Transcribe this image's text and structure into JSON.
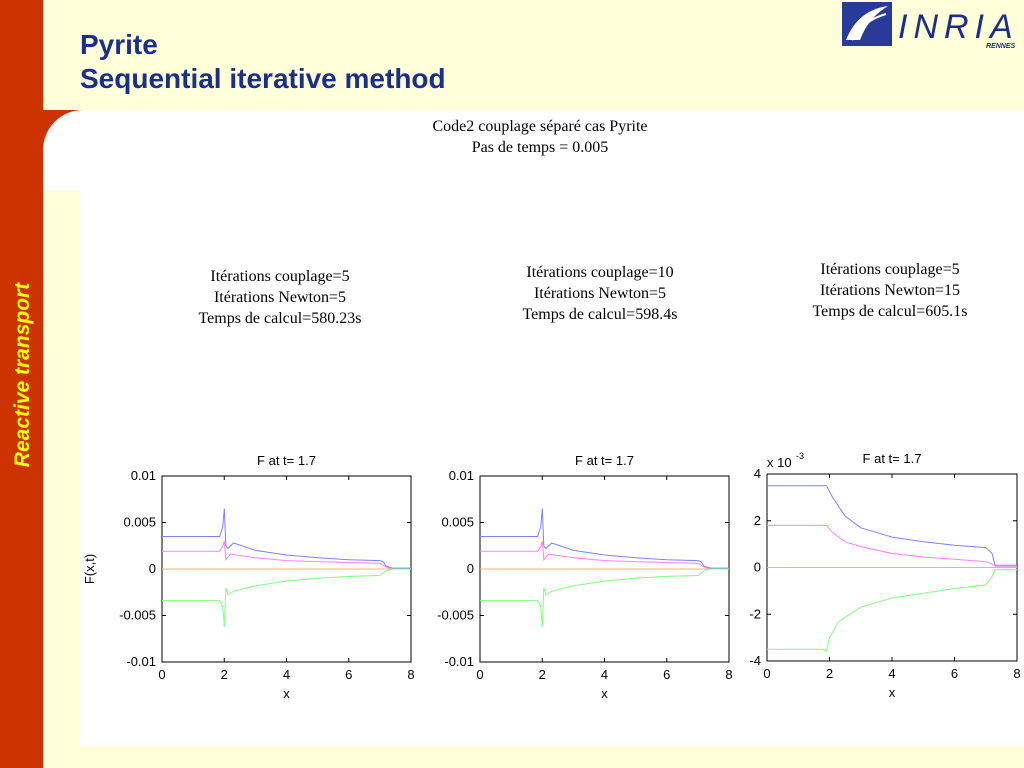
{
  "slide": {
    "title_line1": "Pyrite",
    "title_line2": "Sequential iterative method",
    "section_label": "Reactive transport",
    "logo_text": "INRIA",
    "logo_subtext": "RENNES"
  },
  "figure": {
    "title_line1": "Code2 couplage séparé cas Pyrite",
    "title_line2": "Pas de temps = 0.005"
  },
  "runs": [
    {
      "line1": "Itérations couplage=5",
      "line2": "Itérations Newton=5",
      "line3": "Temps de calcul=580.23s"
    },
    {
      "line1": "Itérations couplage=10",
      "line2": "Itérations Newton=5",
      "line3": "Temps de calcul=598.4s"
    },
    {
      "line1": "Itérations couplage=5",
      "line2": "Itérations Newton=15",
      "line3": "Temps de calcul=605.1s"
    }
  ],
  "colors": {
    "series_blue": "#8080ff",
    "series_magenta": "#ff80ff",
    "series_green": "#80ff80",
    "series_orange": "#ffb070"
  },
  "chart_data": [
    {
      "type": "line",
      "title": "F at t= 1.7",
      "xlabel": "x",
      "ylabel": "F(x,t)",
      "xlim": [
        0,
        8
      ],
      "ylim": [
        -0.01,
        0.01
      ],
      "xticks": [
        "0",
        "2",
        "4",
        "6",
        "8"
      ],
      "yticks": [
        "-0.01",
        "-0.005",
        "0",
        "0.005",
        "0.01"
      ],
      "series": [
        {
          "color": "#8080ff",
          "x": [
            0,
            1.85,
            1.95,
            2.0,
            2.05,
            2.12,
            2.3,
            3,
            4,
            5,
            6,
            7,
            7.1,
            7.2,
            7.4,
            8
          ],
          "y": [
            0.0035,
            0.0035,
            0.0045,
            0.0065,
            0.0025,
            0.0022,
            0.0028,
            0.002,
            0.0015,
            0.0012,
            0.001,
            0.0009,
            0.0008,
            0.0003,
            0.0001,
            0.0001
          ]
        },
        {
          "color": "#ff80ff",
          "x": [
            0,
            1.85,
            1.95,
            2.0,
            2.05,
            2.2,
            3,
            4,
            5,
            6,
            7,
            7.2,
            7.4,
            8
          ],
          "y": [
            0.0019,
            0.0019,
            0.0024,
            0.003,
            0.001,
            0.0016,
            0.0012,
            0.0009,
            0.0008,
            0.0007,
            0.0006,
            0.0002,
            0.0,
            0.0
          ]
        },
        {
          "color": "#ffb070",
          "x": [
            0,
            8
          ],
          "y": [
            0.0,
            0.0
          ]
        },
        {
          "color": "#80ff80",
          "x": [
            0,
            1.85,
            1.95,
            2.0,
            2.05,
            2.12,
            2.3,
            3,
            4,
            5,
            6,
            7,
            7.2,
            7.4,
            8
          ],
          "y": [
            -0.0034,
            -0.0034,
            -0.004,
            -0.0062,
            -0.002,
            -0.0028,
            -0.0024,
            -0.0018,
            -0.0013,
            -0.001,
            -0.0008,
            -0.0007,
            -0.0002,
            0.0,
            0.0
          ]
        }
      ]
    },
    {
      "type": "line",
      "title": "F at t= 1.7",
      "xlabel": "x",
      "ylabel": "",
      "xlim": [
        0,
        8
      ],
      "ylim": [
        -0.01,
        0.01
      ],
      "xticks": [
        "0",
        "2",
        "4",
        "6",
        "8"
      ],
      "yticks": [
        "-0.01",
        "-0.005",
        "0",
        "0.005",
        "0.01"
      ],
      "series": [
        {
          "color": "#8080ff",
          "x": [
            0,
            1.85,
            1.95,
            2.0,
            2.05,
            2.12,
            2.3,
            3,
            4,
            5,
            6,
            7,
            7.1,
            7.2,
            7.4,
            8
          ],
          "y": [
            0.0035,
            0.0035,
            0.0045,
            0.0065,
            0.0025,
            0.0022,
            0.0028,
            0.002,
            0.0015,
            0.0012,
            0.001,
            0.0009,
            0.0008,
            0.0003,
            0.0001,
            0.0001
          ]
        },
        {
          "color": "#ff80ff",
          "x": [
            0,
            1.85,
            1.95,
            2.0,
            2.05,
            2.2,
            3,
            4,
            5,
            6,
            7,
            7.2,
            7.4,
            8
          ],
          "y": [
            0.0019,
            0.0019,
            0.0024,
            0.003,
            0.001,
            0.0016,
            0.0012,
            0.0009,
            0.0008,
            0.0007,
            0.0006,
            0.0002,
            0.0,
            0.0
          ]
        },
        {
          "color": "#ffb070",
          "x": [
            0,
            8
          ],
          "y": [
            0.0,
            0.0
          ]
        },
        {
          "color": "#80ff80",
          "x": [
            0,
            1.85,
            1.95,
            2.0,
            2.05,
            2.12,
            2.3,
            3,
            4,
            5,
            6,
            7,
            7.2,
            7.4,
            8
          ],
          "y": [
            -0.0034,
            -0.0034,
            -0.004,
            -0.0062,
            -0.002,
            -0.0028,
            -0.0024,
            -0.0018,
            -0.0013,
            -0.001,
            -0.0008,
            -0.0007,
            -0.0002,
            0.0,
            0.0
          ]
        }
      ]
    },
    {
      "type": "line",
      "title": "F at t= 1.7",
      "xlabel": "x",
      "ylabel": "",
      "scale_label": "x 10",
      "scale_exponent": "-3",
      "xlim": [
        0,
        8
      ],
      "ylim": [
        -4,
        4
      ],
      "xticks": [
        "0",
        "2",
        "4",
        "6",
        "8"
      ],
      "yticks": [
        "-4",
        "-2",
        "0",
        "2",
        "4"
      ],
      "series": [
        {
          "color": "#8080ff",
          "x": [
            0,
            1.9,
            2.1,
            2.5,
            3,
            4,
            5,
            6,
            7,
            7.2,
            7.3,
            8
          ],
          "y": [
            3.5,
            3.5,
            3.0,
            2.2,
            1.7,
            1.3,
            1.1,
            0.95,
            0.85,
            0.6,
            0.1,
            0.1
          ]
        },
        {
          "color": "#ff80ff",
          "x": [
            0,
            1.9,
            2.1,
            2.5,
            3,
            4,
            5,
            6,
            7,
            7.2,
            7.3,
            8
          ],
          "y": [
            1.8,
            1.8,
            1.5,
            1.1,
            0.9,
            0.6,
            0.45,
            0.35,
            0.25,
            0.15,
            0.05,
            0.05
          ]
        },
        {
          "color": "#ffb070",
          "x": [
            0,
            8
          ],
          "y": [
            0,
            0
          ]
        },
        {
          "color": "#80ff80",
          "x": [
            0,
            1.8,
            1.9,
            2.0,
            2.3,
            3,
            4,
            5,
            6,
            7,
            7.2,
            7.3,
            8
          ],
          "y": [
            -3.5,
            -3.5,
            -3.6,
            -3.0,
            -2.3,
            -1.7,
            -1.3,
            -1.1,
            -0.9,
            -0.75,
            -0.4,
            -0.1,
            -0.1
          ]
        }
      ]
    }
  ]
}
